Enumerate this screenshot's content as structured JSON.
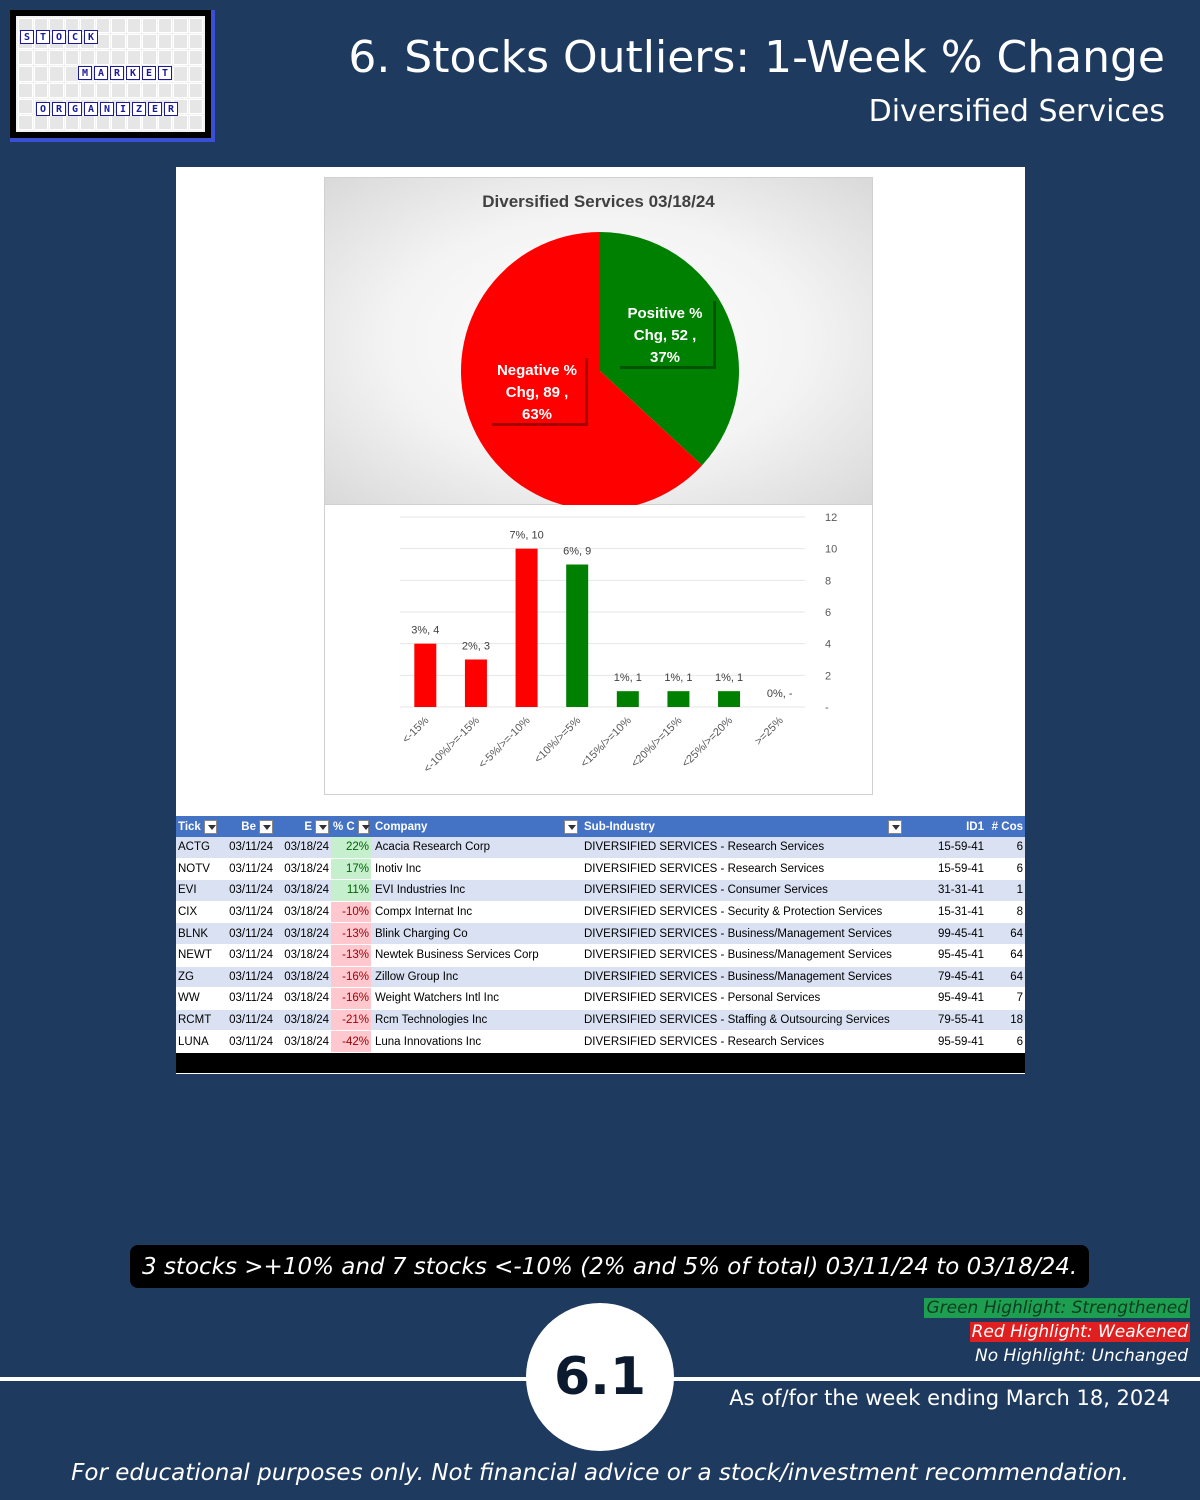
{
  "logo": {
    "word1": [
      "S",
      "T",
      "O",
      "C",
      "K"
    ],
    "word2": [
      "M",
      "A",
      "R",
      "K",
      "E",
      "T"
    ],
    "word3": [
      "O",
      "R",
      "G",
      "A",
      "N",
      "I",
      "Z",
      "E",
      "R"
    ]
  },
  "header": {
    "title": "6. Stocks Outliers: 1-Week % Change",
    "subtitle": "Diversified Services"
  },
  "colors": {
    "positive": "#008000",
    "negative": "#ff0000",
    "background": "#1e3a5f",
    "table_header": "#4472c4"
  },
  "chart_data": [
    {
      "type": "pie",
      "title": "Diversified Services 03/18/24",
      "slices": [
        {
          "name": "Positive % Chg",
          "value": 52,
          "percent": "37%",
          "color": "#008000"
        },
        {
          "name": "Negative % Chg",
          "value": 89,
          "percent": "63%",
          "color": "#ff0000"
        }
      ],
      "slice_labels": [
        [
          "Positive %",
          "Chg,  52 ,",
          "37%"
        ],
        [
          "Negative %",
          "Chg,  89 ,",
          "63%"
        ]
      ]
    },
    {
      "type": "bar",
      "categories": [
        "<-15%",
        "<-10%/>=-15%",
        "<-5%/>=-10%",
        "<10%/>=5%",
        "<15%/>=10%",
        "<20%/>=15%",
        "<25%/>=20%",
        ">=25%"
      ],
      "values": [
        4,
        3,
        10,
        9,
        1,
        1,
        1,
        0
      ],
      "colors": [
        "#ff0000",
        "#ff0000",
        "#ff0000",
        "#008000",
        "#008000",
        "#008000",
        "#008000",
        "#008000"
      ],
      "data_labels": [
        "3%,  4",
        "2%,  3",
        "7%,  10",
        "6%,  9",
        "1%,  1",
        "1%,  1",
        "1%,  1",
        "0%,  -"
      ],
      "ylim": [
        0,
        12
      ],
      "yticks": [
        "-",
        "2",
        "4",
        "6",
        "8",
        "10",
        "12"
      ],
      "y_axis_side": "right",
      "grid": true
    }
  ],
  "table": {
    "headers": {
      "ticker": "Tick",
      "beg": "Be",
      "end": "E",
      "pct": "% C",
      "company": "Company",
      "sub": "Sub-Industry",
      "id": "ID1",
      "cos": "# Cos"
    },
    "rows": [
      {
        "ticker": "ACTG",
        "beg": "03/11/24",
        "end": "03/18/24",
        "pct": "22%",
        "sign": "pos",
        "company": "Acacia Research Corp",
        "sub": "DIVERSIFIED SERVICES - Research Services",
        "id": "15-59-41",
        "cos": "6"
      },
      {
        "ticker": "NOTV",
        "beg": "03/11/24",
        "end": "03/18/24",
        "pct": "17%",
        "sign": "pos",
        "company": "Inotiv Inc",
        "sub": "DIVERSIFIED SERVICES - Research Services",
        "id": "15-59-41",
        "cos": "6"
      },
      {
        "ticker": "EVI",
        "beg": "03/11/24",
        "end": "03/18/24",
        "pct": "11%",
        "sign": "pos",
        "company": "EVI Industries Inc",
        "sub": "DIVERSIFIED SERVICES - Consumer Services",
        "id": "31-31-41",
        "cos": "1"
      },
      {
        "ticker": "CIX",
        "beg": "03/11/24",
        "end": "03/18/24",
        "pct": "-10%",
        "sign": "neg",
        "company": "Compx Internat Inc",
        "sub": "DIVERSIFIED SERVICES - Security & Protection Services",
        "id": "15-31-41",
        "cos": "8"
      },
      {
        "ticker": "BLNK",
        "beg": "03/11/24",
        "end": "03/18/24",
        "pct": "-13%",
        "sign": "neg",
        "company": "Blink Charging Co",
        "sub": "DIVERSIFIED SERVICES - Business/Management Services",
        "id": "99-45-41",
        "cos": "64"
      },
      {
        "ticker": "NEWT",
        "beg": "03/11/24",
        "end": "03/18/24",
        "pct": "-13%",
        "sign": "neg",
        "company": "Newtek Business Services Corp",
        "sub": "DIVERSIFIED SERVICES - Business/Management Services",
        "id": "95-45-41",
        "cos": "64"
      },
      {
        "ticker": "ZG",
        "beg": "03/11/24",
        "end": "03/18/24",
        "pct": "-16%",
        "sign": "neg",
        "company": "Zillow Group Inc",
        "sub": "DIVERSIFIED SERVICES - Business/Management Services",
        "id": "79-45-41",
        "cos": "64"
      },
      {
        "ticker": "WW",
        "beg": "03/11/24",
        "end": "03/18/24",
        "pct": "-16%",
        "sign": "neg",
        "company": "Weight Watchers Intl Inc",
        "sub": "DIVERSIFIED SERVICES - Personal Services",
        "id": "95-49-41",
        "cos": "7"
      },
      {
        "ticker": "RCMT",
        "beg": "03/11/24",
        "end": "03/18/24",
        "pct": "-21%",
        "sign": "neg",
        "company": "Rcm Technologies Inc",
        "sub": "DIVERSIFIED SERVICES - Staffing & Outsourcing Services",
        "id": "79-55-41",
        "cos": "18"
      },
      {
        "ticker": "LUNA",
        "beg": "03/11/24",
        "end": "03/18/24",
        "pct": "-42%",
        "sign": "neg",
        "company": "Luna Innovations Inc",
        "sub": "DIVERSIFIED SERVICES - Research Services",
        "id": "95-59-41",
        "cos": "6"
      }
    ]
  },
  "summary": "3 stocks >+10% and 7 stocks <-10% (2% and 5% of total) 03/11/24 to 03/18/24.",
  "legend": {
    "green": "Green Highlight: Strengthened",
    "red": "Red Highlight: Weakened",
    "none": "No Highlight: Unchanged"
  },
  "page_number": "6.1",
  "as_of": "As of/for the week ending March 18, 2024",
  "disclaimer": "For educational purposes only. Not financial advice or a stock/investment recommendation."
}
